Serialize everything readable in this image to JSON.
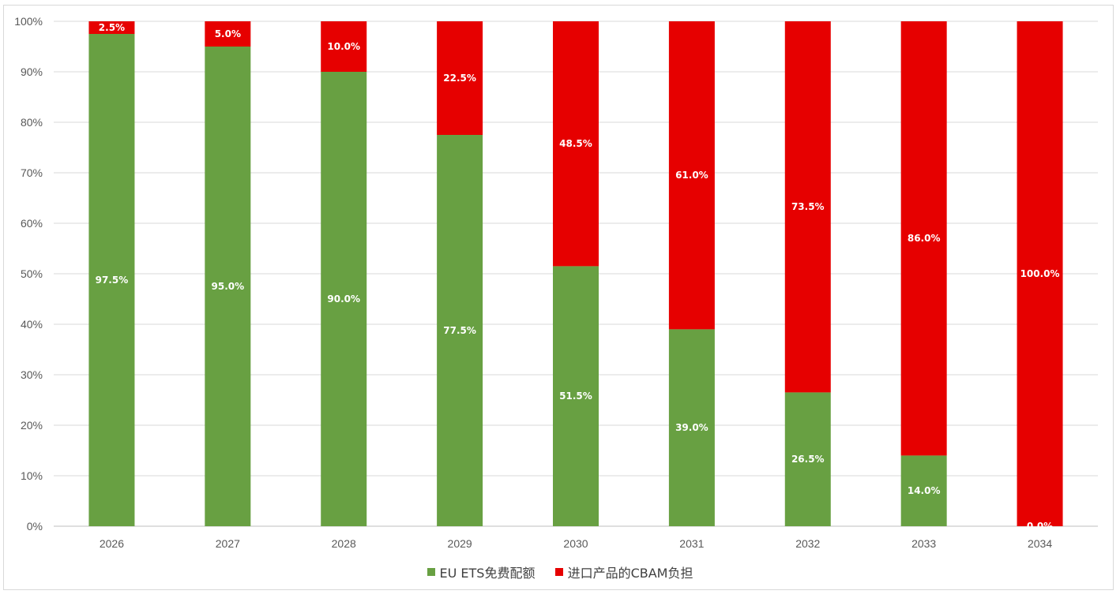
{
  "chart_data": {
    "type": "bar",
    "stacked": true,
    "categories": [
      "2026",
      "2027",
      "2028",
      "2029",
      "2030",
      "2031",
      "2032",
      "2033",
      "2034"
    ],
    "series": [
      {
        "name": "EU ETS免费配额",
        "color": "#68a042",
        "values": [
          97.5,
          95.0,
          90.0,
          77.5,
          51.5,
          39.0,
          26.5,
          14.0,
          0.0
        ],
        "labels": [
          "97.5%",
          "95.0%",
          "90.0%",
          "77.5%",
          "51.5%",
          "39.0%",
          "26.5%",
          "14.0%",
          "0.0%"
        ]
      },
      {
        "name": "进口产品的CBAM负担",
        "color": "#e60000",
        "values": [
          2.5,
          5.0,
          10.0,
          22.5,
          48.5,
          61.0,
          73.5,
          86.0,
          100.0
        ],
        "labels": [
          "2.5%",
          "5.0%",
          "10.0%",
          "22.5%",
          "48.5%",
          "61.0%",
          "73.5%",
          "86.0%",
          "100.0%"
        ]
      }
    ],
    "ylim": [
      0,
      100
    ],
    "yticks": [
      "0%",
      "10%",
      "20%",
      "30%",
      "40%",
      "50%",
      "60%",
      "70%",
      "80%",
      "90%",
      "100%"
    ],
    "grid": true,
    "legend_position": "bottom"
  }
}
